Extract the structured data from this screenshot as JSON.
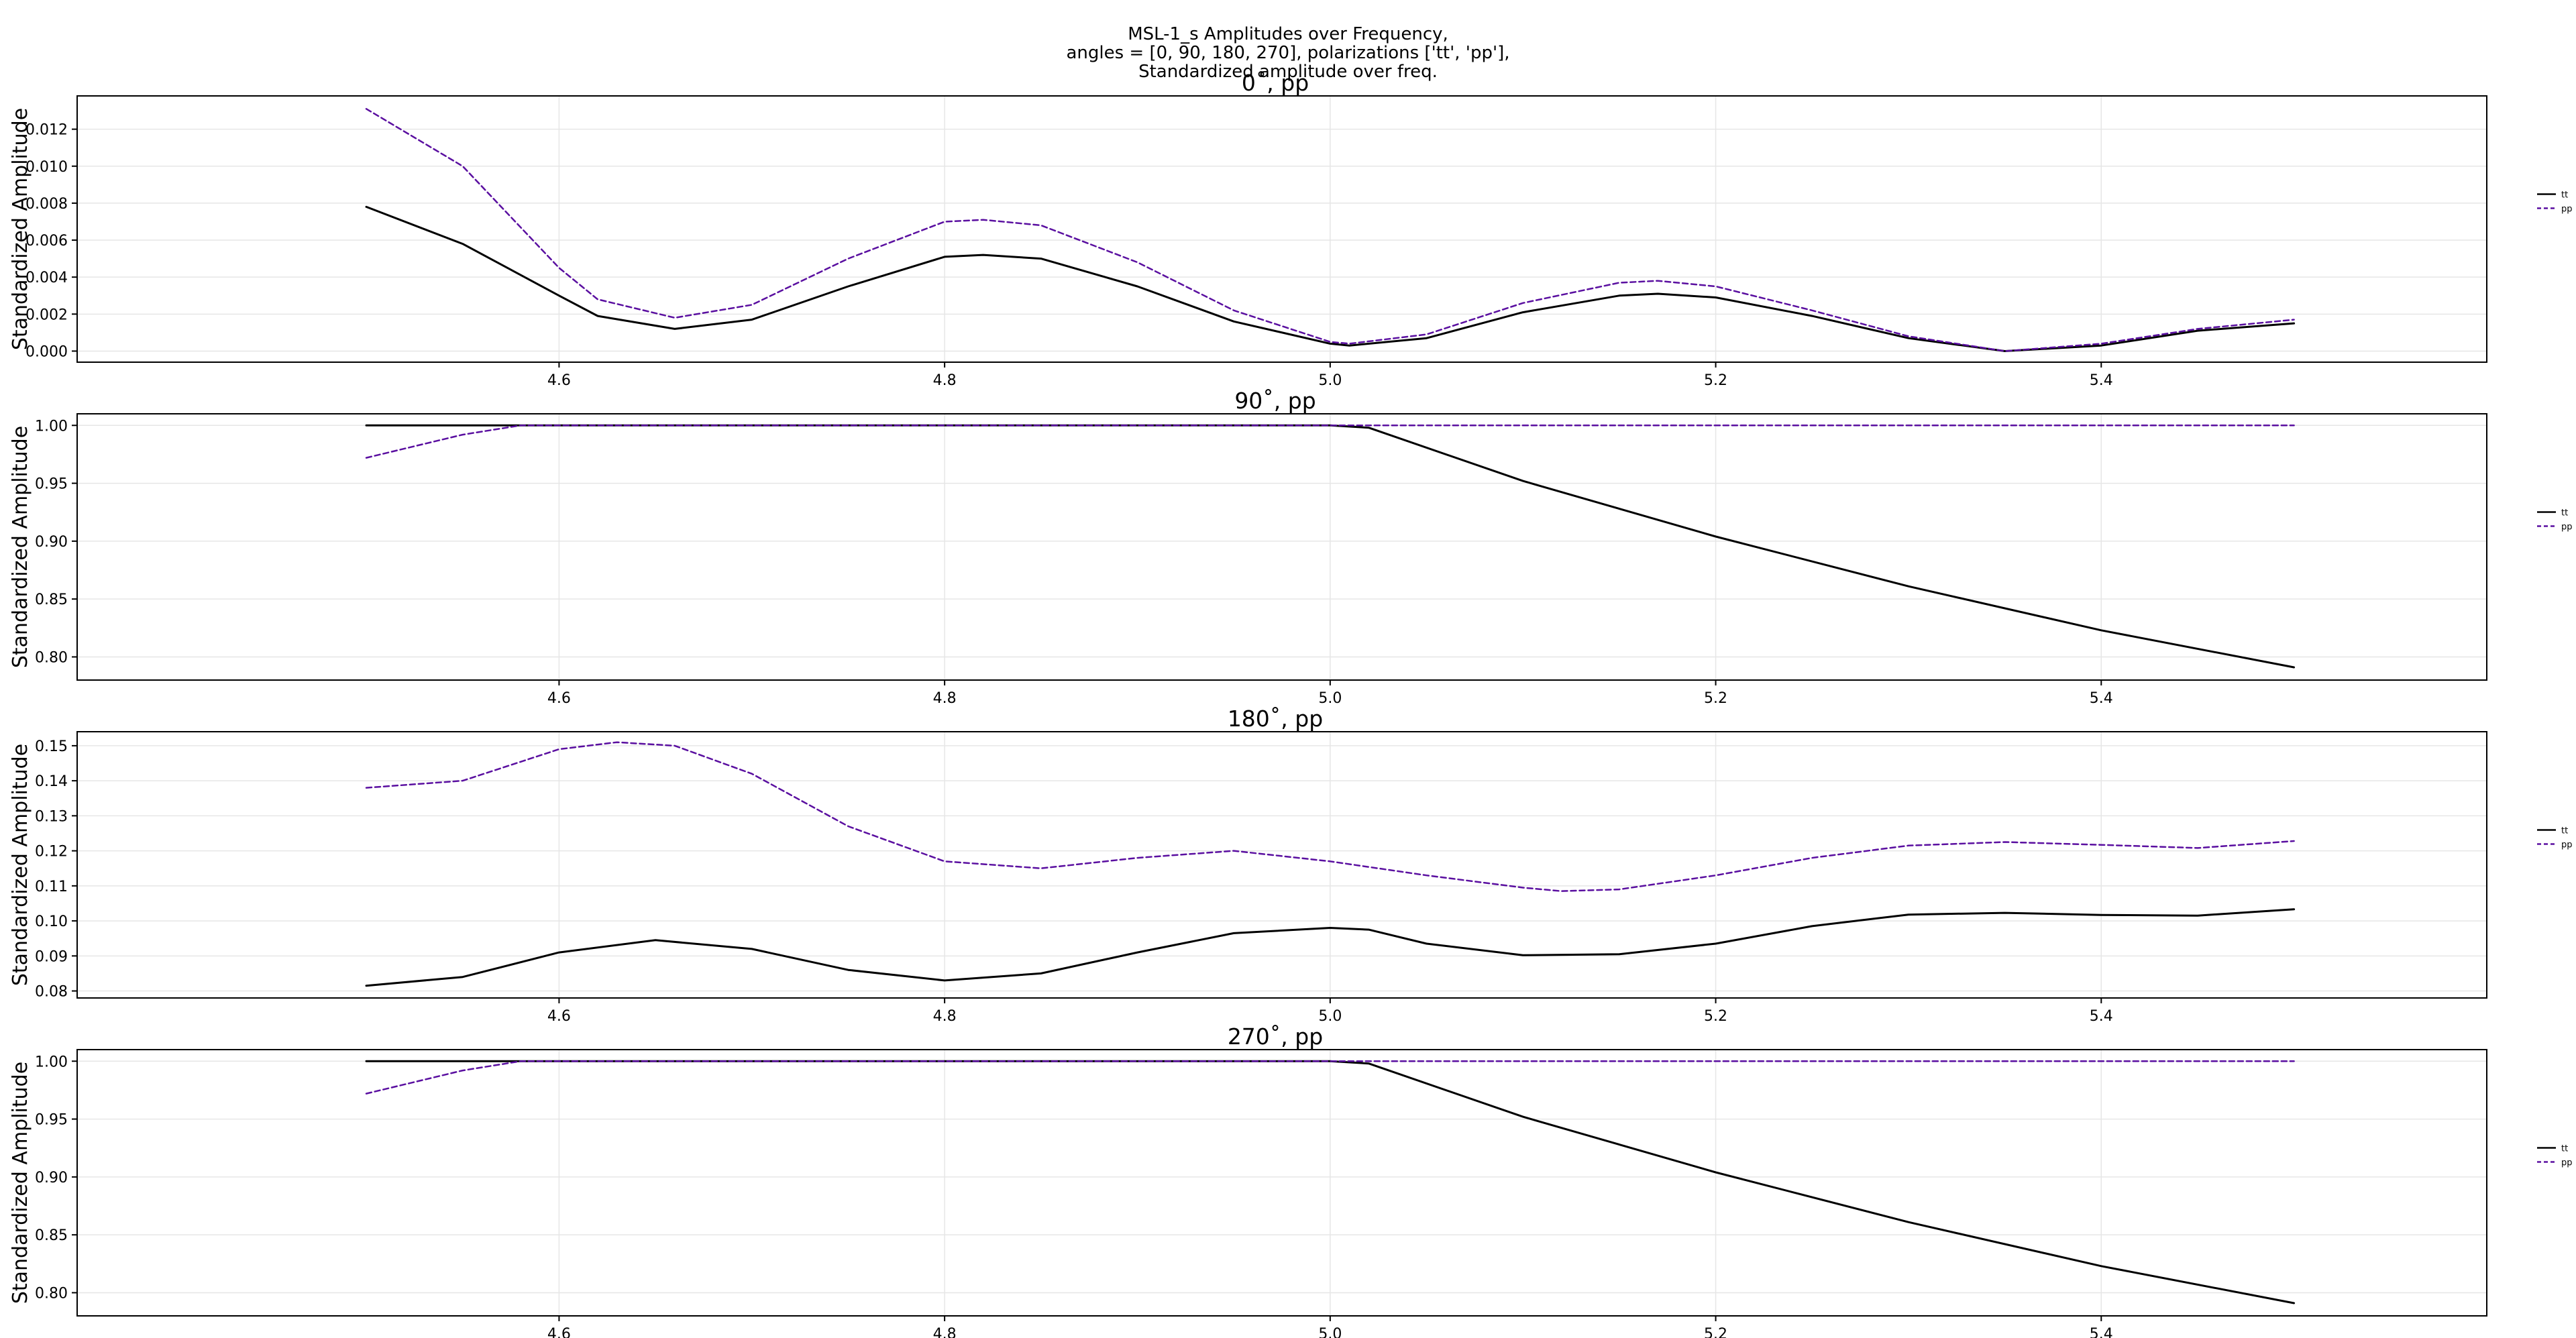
{
  "figure": {
    "title_lines": [
      "MSL-1_s Amplitudes over Frequency,",
      "angles = [0, 90, 180, 270], polarizations ['tt', 'pp'],",
      "Standardized amplitude over freq."
    ]
  },
  "colors": {
    "tt": "#000000",
    "pp": "#5a0fa0",
    "grid": "#e6e6e6",
    "axes": "#000000"
  },
  "chart_data": [
    {
      "type": "line",
      "title": "0˚, pp",
      "ylabel": "Standardized Amplitude",
      "xlabel": "",
      "xlim": [
        4.35,
        5.6
      ],
      "ylim": [
        -0.0006,
        0.0138
      ],
      "xticks": [
        4.6,
        4.8,
        5.0,
        5.2,
        5.4
      ],
      "xtick_labels": [
        "4.6",
        "4.8",
        "5.0",
        "5.2",
        "5.4"
      ],
      "yticks": [
        0.0,
        0.002,
        0.004,
        0.006,
        0.008,
        0.01,
        0.012
      ],
      "ytick_labels": [
        "0.000",
        "0.002",
        "0.004",
        "0.006",
        "0.008",
        "0.010",
        "0.012"
      ],
      "grid": true,
      "legend": "right",
      "series": [
        {
          "name": "tt",
          "style": "solid",
          "x": [
            4.5,
            4.55,
            4.6,
            4.62,
            4.66,
            4.7,
            4.75,
            4.8,
            4.82,
            4.85,
            4.9,
            4.95,
            5.0,
            5.01,
            5.05,
            5.1,
            5.15,
            5.17,
            5.2,
            5.25,
            5.3,
            5.35,
            5.4,
            5.45,
            5.5
          ],
          "y": [
            0.0078,
            0.0058,
            0.003,
            0.0019,
            0.0012,
            0.0017,
            0.0035,
            0.0051,
            0.0052,
            0.005,
            0.0035,
            0.0016,
            0.0004,
            0.0003,
            0.0007,
            0.0021,
            0.003,
            0.0031,
            0.0029,
            0.0019,
            0.0007,
            0.0,
            0.0003,
            0.0011,
            0.0015
          ]
        },
        {
          "name": "pp",
          "style": "dashed",
          "x": [
            4.5,
            4.55,
            4.6,
            4.62,
            4.66,
            4.7,
            4.75,
            4.8,
            4.82,
            4.85,
            4.9,
            4.95,
            5.0,
            5.01,
            5.05,
            5.1,
            5.15,
            5.17,
            5.2,
            5.25,
            5.3,
            5.35,
            5.4,
            5.45,
            5.5
          ],
          "y": [
            0.0131,
            0.01,
            0.0045,
            0.0028,
            0.0018,
            0.0025,
            0.005,
            0.007,
            0.0071,
            0.0068,
            0.0048,
            0.0022,
            0.0005,
            0.0004,
            0.0009,
            0.0026,
            0.0037,
            0.0038,
            0.0035,
            0.0022,
            0.0008,
            0.0,
            0.0004,
            0.0012,
            0.0017
          ]
        }
      ]
    },
    {
      "type": "line",
      "title": "90˚, pp",
      "ylabel": "Standardized Amplitude",
      "xlabel": "",
      "xlim": [
        4.35,
        5.6
      ],
      "ylim": [
        0.78,
        1.01
      ],
      "xticks": [
        4.6,
        4.8,
        5.0,
        5.2,
        5.4
      ],
      "xtick_labels": [
        "4.6",
        "4.8",
        "5.0",
        "5.2",
        "5.4"
      ],
      "yticks": [
        0.8,
        0.85,
        0.9,
        0.95,
        1.0
      ],
      "ytick_labels": [
        "0.80",
        "0.85",
        "0.90",
        "0.95",
        "1.00"
      ],
      "grid": true,
      "legend": "right",
      "series": [
        {
          "name": "tt",
          "style": "solid",
          "x": [
            4.5,
            4.6,
            4.8,
            5.0,
            5.02,
            5.1,
            5.2,
            5.3,
            5.4,
            5.5
          ],
          "y": [
            1.0,
            1.0,
            1.0,
            1.0,
            0.998,
            0.952,
            0.904,
            0.861,
            0.823,
            0.791
          ]
        },
        {
          "name": "pp",
          "style": "dashed",
          "x": [
            4.5,
            4.55,
            4.58,
            4.6,
            4.8,
            5.0,
            5.2,
            5.4,
            5.5
          ],
          "y": [
            0.972,
            0.992,
            1.0,
            1.0,
            1.0,
            1.0,
            1.0,
            1.0,
            1.0
          ]
        }
      ]
    },
    {
      "type": "line",
      "title": "180˚, pp",
      "ylabel": "Standardized Amplitude",
      "xlabel": "",
      "xlim": [
        4.35,
        5.6
      ],
      "ylim": [
        0.078,
        0.154
      ],
      "xticks": [
        4.6,
        4.8,
        5.0,
        5.2,
        5.4
      ],
      "xtick_labels": [
        "4.6",
        "4.8",
        "5.0",
        "5.2",
        "5.4"
      ],
      "yticks": [
        0.08,
        0.09,
        0.1,
        0.11,
        0.12,
        0.13,
        0.14,
        0.15
      ],
      "ytick_labels": [
        "0.08",
        "0.09",
        "0.10",
        "0.11",
        "0.12",
        "0.13",
        "0.14",
        "0.15"
      ],
      "grid": true,
      "legend": "right",
      "series": [
        {
          "name": "tt",
          "style": "solid",
          "x": [
            4.5,
            4.55,
            4.6,
            4.65,
            4.7,
            4.75,
            4.8,
            4.85,
            4.9,
            4.95,
            5.0,
            5.02,
            5.05,
            5.1,
            5.15,
            5.2,
            5.25,
            5.3,
            5.35,
            5.4,
            5.45,
            5.5
          ],
          "y": [
            0.0815,
            0.084,
            0.091,
            0.0945,
            0.092,
            0.086,
            0.083,
            0.085,
            0.091,
            0.0965,
            0.098,
            0.0975,
            0.0935,
            0.0902,
            0.0905,
            0.0935,
            0.0985,
            0.1018,
            0.1023,
            0.1017,
            0.1015,
            0.1033
          ]
        },
        {
          "name": "pp",
          "style": "dashed",
          "x": [
            4.5,
            4.55,
            4.6,
            4.63,
            4.66,
            4.7,
            4.75,
            4.8,
            4.85,
            4.9,
            4.95,
            5.0,
            5.05,
            5.1,
            5.12,
            5.15,
            5.2,
            5.25,
            5.3,
            5.35,
            5.4,
            5.45,
            5.5
          ],
          "y": [
            0.138,
            0.14,
            0.149,
            0.151,
            0.15,
            0.142,
            0.127,
            0.117,
            0.115,
            0.118,
            0.12,
            0.117,
            0.113,
            0.1095,
            0.1085,
            0.109,
            0.113,
            0.118,
            0.1215,
            0.1225,
            0.1217,
            0.1208,
            0.1228
          ]
        }
      ]
    },
    {
      "type": "line",
      "title": "270˚, pp",
      "ylabel": "Standardized Amplitude",
      "xlabel": "",
      "xlim": [
        4.35,
        5.6
      ],
      "ylim": [
        0.78,
        1.01
      ],
      "xticks": [
        4.6,
        4.8,
        5.0,
        5.2,
        5.4
      ],
      "xtick_labels": [
        "4.6",
        "4.8",
        "5.0",
        "5.2",
        "5.4"
      ],
      "yticks": [
        0.8,
        0.85,
        0.9,
        0.95,
        1.0
      ],
      "ytick_labels": [
        "0.80",
        "0.85",
        "0.90",
        "0.95",
        "1.00"
      ],
      "grid": true,
      "legend": "right",
      "series": [
        {
          "name": "tt",
          "style": "solid",
          "x": [
            4.5,
            4.6,
            4.8,
            5.0,
            5.02,
            5.1,
            5.2,
            5.3,
            5.4,
            5.5
          ],
          "y": [
            1.0,
            1.0,
            1.0,
            1.0,
            0.998,
            0.952,
            0.904,
            0.861,
            0.823,
            0.791
          ]
        },
        {
          "name": "pp",
          "style": "dashed",
          "x": [
            4.5,
            4.55,
            4.58,
            4.6,
            4.8,
            5.0,
            5.2,
            5.4,
            5.5
          ],
          "y": [
            0.972,
            0.992,
            1.0,
            1.0,
            1.0,
            1.0,
            1.0,
            1.0,
            1.0
          ]
        }
      ]
    }
  ]
}
